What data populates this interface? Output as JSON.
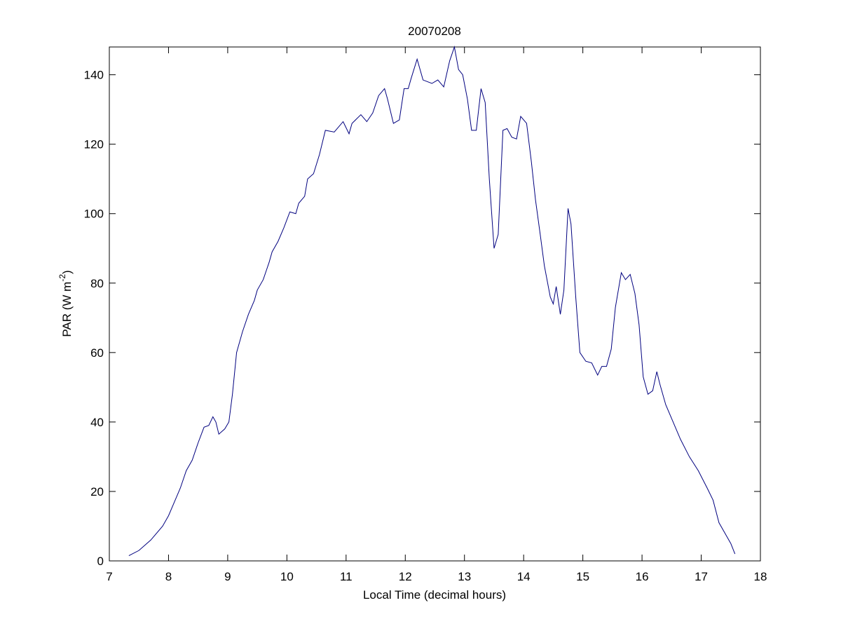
{
  "chart_data": {
    "type": "line",
    "title": "20070208",
    "x_label": "Local Time (decimal hours)",
    "y_label": {
      "text": "PAR (W m",
      "sup": "-2",
      "end": ")"
    },
    "xlim": [
      7,
      18
    ],
    "xticks": [
      7,
      8,
      9,
      10,
      11,
      12,
      13,
      14,
      15,
      16,
      17,
      18
    ],
    "ylim": [
      0,
      148
    ],
    "yticks": [
      0,
      20,
      40,
      60,
      80,
      100,
      120,
      140
    ],
    "series": [
      {
        "color": "#00007f",
        "x": [
          7.33,
          7.5,
          7.7,
          7.9,
          8.0,
          8.1,
          8.2,
          8.3,
          8.4,
          8.5,
          8.6,
          8.68,
          8.75,
          8.8,
          8.85,
          8.95,
          9.02,
          9.08,
          9.15,
          9.25,
          9.35,
          9.45,
          9.5,
          9.6,
          9.7,
          9.75,
          9.85,
          9.95,
          10.05,
          10.15,
          10.2,
          10.3,
          10.35,
          10.45,
          10.55,
          10.65,
          10.8,
          10.95,
          11.05,
          11.1,
          11.25,
          11.35,
          11.45,
          11.55,
          11.65,
          11.7,
          11.8,
          11.9,
          11.98,
          12.05,
          12.1,
          12.2,
          12.3,
          12.45,
          12.55,
          12.65,
          12.75,
          12.83,
          12.9,
          12.97,
          13.05,
          13.12,
          13.2,
          13.28,
          13.35,
          13.42,
          13.5,
          13.57,
          13.65,
          13.72,
          13.8,
          13.88,
          13.95,
          14.05,
          14.13,
          14.2,
          14.28,
          14.35,
          14.45,
          14.5,
          14.55,
          14.62,
          14.68,
          14.75,
          14.8,
          14.88,
          14.95,
          15.05,
          15.15,
          15.25,
          15.32,
          15.4,
          15.48,
          15.55,
          15.65,
          15.72,
          15.8,
          15.88,
          15.95,
          16.02,
          16.1,
          16.18,
          16.25,
          16.3,
          16.4,
          16.5,
          16.65,
          16.8,
          16.95,
          17.1,
          17.2,
          17.3,
          17.4,
          17.5,
          17.57
        ],
        "values": [
          1.5,
          3,
          6,
          10,
          13,
          17,
          21,
          26,
          29,
          34,
          38.5,
          39,
          41.5,
          40,
          36.5,
          38,
          40,
          48,
          60,
          66,
          71,
          75,
          78,
          81,
          86,
          89,
          92,
          96,
          100.5,
          100,
          103,
          105,
          110,
          111.5,
          117,
          124,
          123.5,
          126.5,
          123,
          126,
          128.5,
          126.5,
          129,
          134,
          136,
          133,
          126,
          127,
          136,
          136,
          139,
          144.5,
          138.5,
          137.5,
          138.5,
          136.5,
          144,
          148,
          141.5,
          140,
          133,
          124,
          124,
          136,
          132,
          110,
          90,
          94,
          124,
          124.5,
          122,
          121.5,
          128,
          126,
          115,
          104,
          94,
          85,
          76,
          74,
          79,
          71,
          78,
          101.5,
          97,
          76,
          60,
          57.5,
          57,
          53.5,
          56,
          56,
          61,
          73,
          83,
          81,
          82.5,
          77,
          68,
          53,
          48,
          49,
          54.5,
          51,
          45,
          41,
          35,
          30,
          26,
          21,
          17.5,
          11,
          8,
          5,
          2
        ]
      }
    ]
  }
}
